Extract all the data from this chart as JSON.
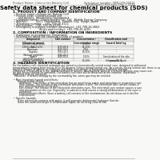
{
  "bg_color": "#f8f8f6",
  "header_left": "Product Name: Lithium Ion Battery Cell",
  "header_right_line1": "Substance number: SBN-049-00016",
  "header_right_line2": "Established / Revision: Dec.1 2016",
  "title": "Safety data sheet for chemical products (SDS)",
  "section1_title": "1. PRODUCT AND COMPANY IDENTIFICATION",
  "section1_lines": [
    " • Product name: Lithium Ion Battery Cell",
    " • Product code: Cylindrical-type cell",
    "      SN1865001, SN1865002, SN1865004",
    " • Company name:   Sanyo Electric Co., Ltd.  Mobile Energy Company",
    " • Address:         2021  Kamikaiden, Sumoto-City, Hyogo, Japan",
    " • Telephone number:   +81-799-26-4111",
    " • Fax number:   +81-799-26-4120",
    " • Emergency telephone number (Weekdays): +81-799-26-3662",
    "                             (Night and holiday): +81-799-26-4101"
  ],
  "section2_title": "2. COMPOSITION / INFORMATION ON INGREDIENTS",
  "section2_lines": [
    " • Substance or preparation: Preparation",
    " • Information about the chemical nature of product:"
  ],
  "table_col_headers": [
    "Component\n(Chemical name)",
    "CAS number",
    "Concentration /\nConcentration range",
    "Classification and\nhazard labeling"
  ],
  "table_rows": [
    [
      "Lithium cobalt oxide\n(LiMnCoO2/LiCoO2)",
      "-",
      "30-50%",
      "-"
    ],
    [
      "Iron",
      "7439-89-6",
      "15-25%",
      "-"
    ],
    [
      "Aluminum",
      "7429-90-5",
      "2-6%",
      "-"
    ],
    [
      "Graphite\n(Natural graphite)\n(Artificial graphite)",
      "7782-42-5\n7782-42-5",
      "10-25%",
      "-"
    ],
    [
      "Copper",
      "7440-50-8",
      "5-15%",
      "Sensitization of the skin\ngroup No.2"
    ],
    [
      "Organic electrolyte",
      "-",
      "10-20%",
      "Inflammable liquid"
    ]
  ],
  "section3_title": "3. HAZARDS IDENTIFICATION",
  "section3_text": [
    "For the battery cell, chemical materials are stored in a hermetically sealed metal case, designed to withstand",
    "temperatures ranging from minus-20 to 60 degrees Celsius during normal use. As a result, during normal use, there is no",
    "physical danger of ignition or explosion and there is no danger of hazardous materials leakage.",
    "  However, if exposed to a fire, added mechanical shocks, decomposed, wires or electronic devices may cause use.",
    "No gas release cannot be operated. The battery cell case will be breached at the extreme. Hazardous",
    "materials may be released.",
    "  Moreover, if heated strongly by the surrounding fire, some gas may be emitted.",
    "",
    " • Most important hazard and effects:",
    "      Human health effects:",
    "        Inhalation: The release of the electrolyte has an anesthesia action and stimulates in respiratory tract.",
    "        Skin contact: The release of the electrolyte stimulates a skin. The electrolyte skin contact causes a",
    "        sore and stimulation on the skin.",
    "        Eye contact: The release of the electrolyte stimulates eyes. The electrolyte eye contact causes a sore",
    "        and stimulation on the eye. Especially, a substance that causes a strong inflammation of the eyes is",
    "        contained.",
    "        Environmental effects: Since a battery cell remains in the environment, do not throw out it into the",
    "        environment.",
    "",
    " • Specific hazards:",
    "      If the electrolyte contacts with water, it will generate detrimental hydrogen fluoride.",
    "      Since the used electrolyte is inflammable liquid, do not bring close to fire."
  ],
  "font_color": "#1a1a1a",
  "line_color": "#999999",
  "header_color": "#555555",
  "title_color": "#000000",
  "table_header_bg": "#e0e0e0"
}
